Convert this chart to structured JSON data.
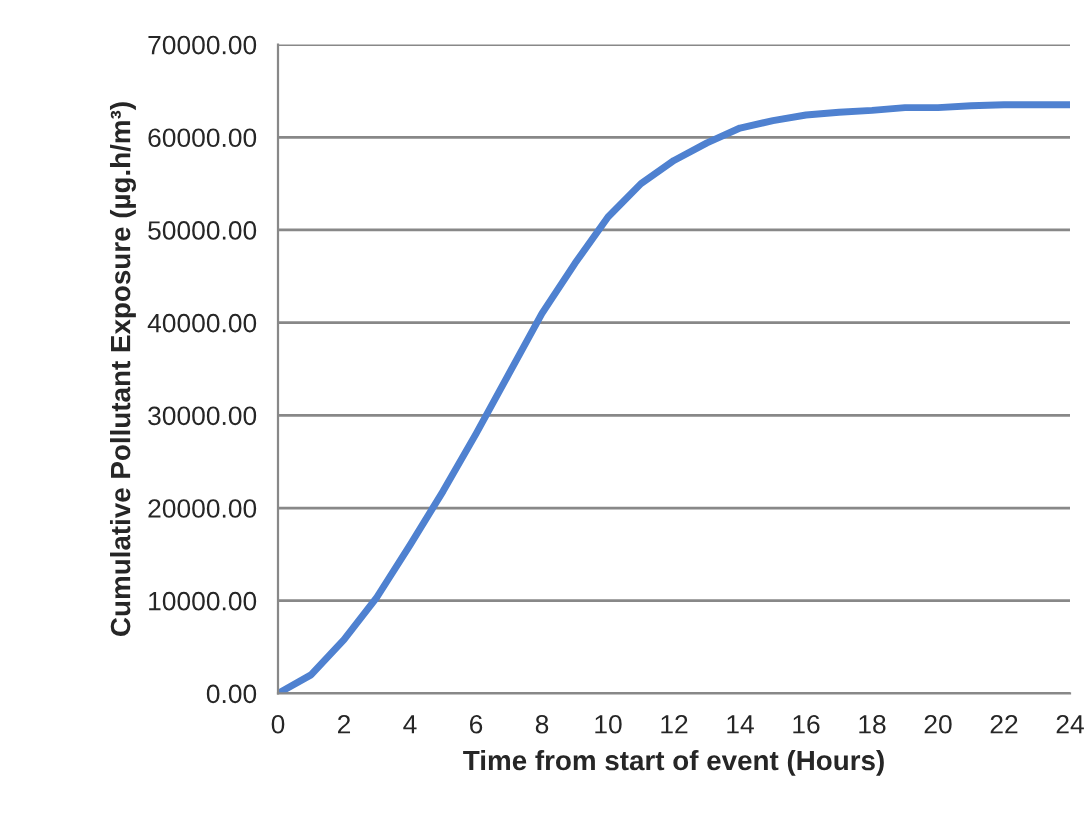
{
  "chart_data": {
    "type": "line",
    "xlabel": "Time from start of event (Hours)",
    "ylabel": "Cumulative Pollutant Exposure (µg.h/m³)",
    "x": [
      0,
      1,
      2,
      3,
      4,
      5,
      6,
      7,
      8,
      9,
      10,
      11,
      12,
      13,
      14,
      15,
      16,
      17,
      18,
      19,
      20,
      21,
      22,
      24
    ],
    "series": [
      {
        "color": "#4f81d0",
        "values": [
          0,
          2000,
          5800,
          10400,
          16000,
          21800,
          28000,
          34500,
          41000,
          46400,
          51400,
          55000,
          57500,
          59400,
          61000,
          61800,
          62400,
          62700,
          62900,
          63200,
          63200,
          63400,
          63500,
          63500
        ]
      }
    ],
    "xlim": [
      0,
      24
    ],
    "xticks": [
      0,
      2,
      4,
      6,
      8,
      10,
      12,
      14,
      16,
      18,
      20,
      22,
      24
    ],
    "ylim": [
      0,
      70000
    ],
    "yticks": [
      {
        "value": 0,
        "label": "0.00"
      },
      {
        "value": 10000,
        "label": "10000.00"
      },
      {
        "value": 20000,
        "label": "20000.00"
      },
      {
        "value": 30000,
        "label": "30000.00"
      },
      {
        "value": 40000,
        "label": "40000.00"
      },
      {
        "value": 50000,
        "label": "50000.00"
      },
      {
        "value": 60000,
        "label": "60000.00"
      },
      {
        "value": 70000,
        "label": "70000.00"
      }
    ],
    "grid": "y",
    "marker": "none",
    "line_style": "solid"
  }
}
